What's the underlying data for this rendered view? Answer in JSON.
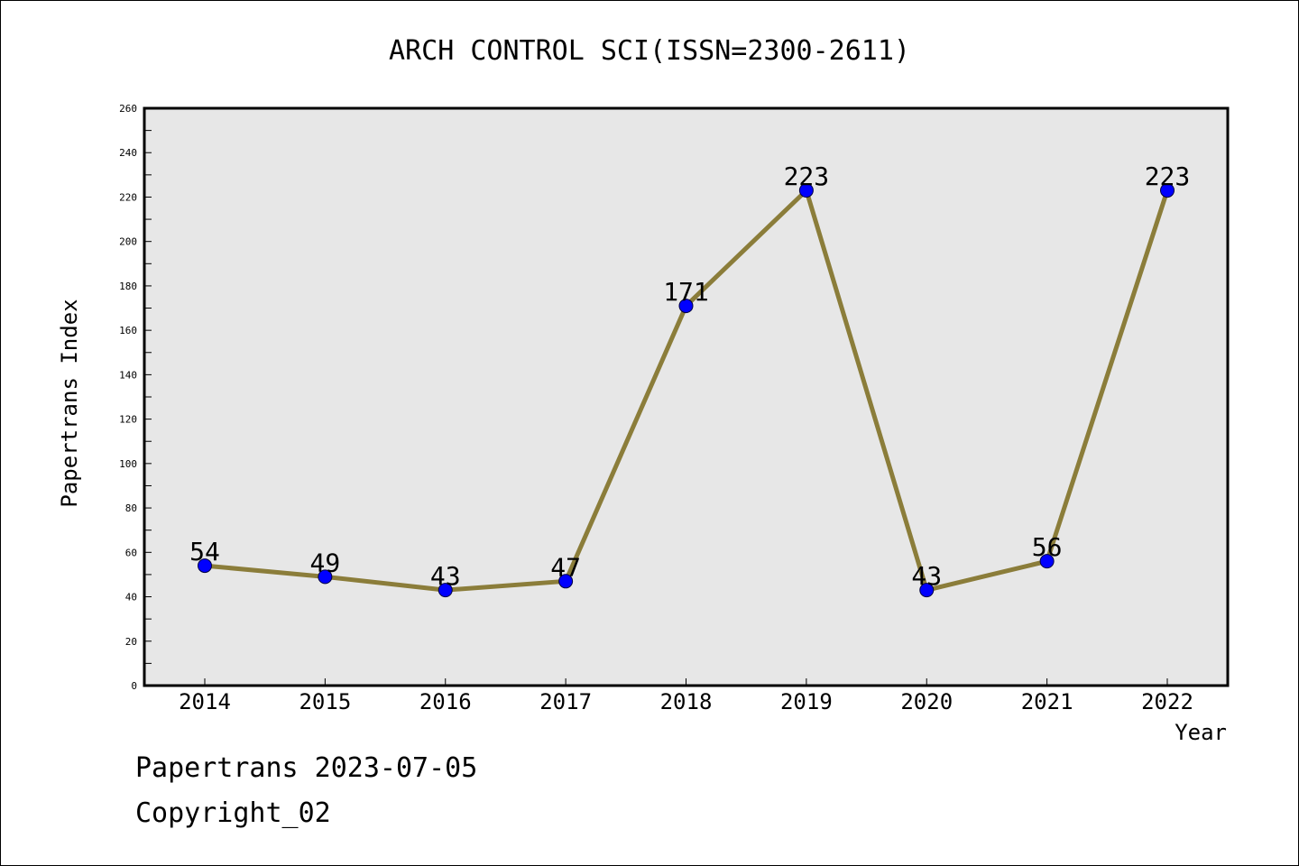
{
  "chart_data": {
    "type": "line",
    "title": "ARCH CONTROL SCI(ISSN=2300-2611)",
    "xlabel": "Year",
    "ylabel": "Papertrans Index",
    "categories": [
      "2014",
      "2015",
      "2016",
      "2017",
      "2018",
      "2019",
      "2020",
      "2021",
      "2022"
    ],
    "series": [
      {
        "values": [
          54,
          49,
          43,
          47,
          171,
          223,
          43,
          56,
          223
        ],
        "line_color": "#8b7d3a",
        "marker_color": "#0000ff"
      }
    ],
    "data_labels": [
      "54",
      "49",
      "43",
      "47",
      "171",
      "223",
      "43",
      "56",
      "223"
    ],
    "ylim": [
      0,
      260
    ],
    "yticks": [
      0,
      20,
      40,
      60,
      80,
      100,
      120,
      140,
      160,
      180,
      200,
      220,
      240,
      260
    ],
    "ytick_labels": [
      "0",
      "20",
      "40",
      "60",
      "80",
      "100",
      "120",
      "140",
      "160",
      "180",
      "200",
      "220",
      "240",
      "260"
    ],
    "grid": false,
    "plot_background": "#e7e7e7"
  },
  "footer": {
    "date_line": "Papertrans 2023-07-05",
    "copyright_line": "Copyright_02"
  }
}
